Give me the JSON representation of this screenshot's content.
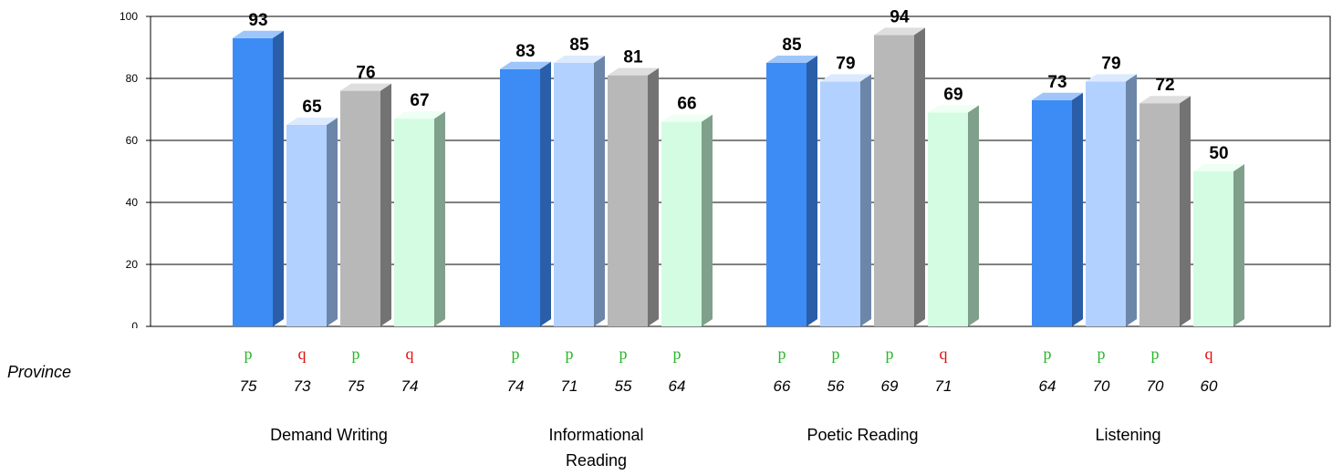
{
  "chart_data": {
    "type": "bar",
    "categories": [
      "Demand Writing",
      "Informational\nReading",
      "Poetic Reading",
      "Listening"
    ],
    "series": [
      {
        "values": [
          93,
          83,
          85,
          73
        ]
      },
      {
        "values": [
          65,
          85,
          79,
          79
        ]
      },
      {
        "values": [
          76,
          81,
          94,
          72
        ]
      },
      {
        "values": [
          67,
          66,
          69,
          50
        ]
      }
    ],
    "ylim": [
      0,
      100
    ],
    "yticks": [
      0,
      20,
      40,
      60,
      80,
      100
    ],
    "grid": true,
    "colors": [
      "#3d8cf5",
      "#b3d1ff",
      "#b8b8b8",
      "#d4fce2"
    ],
    "side_colors": [
      "#2a5ea8",
      "#6c86aa",
      "#737373",
      "#7fa08a"
    ],
    "top_colors": [
      "#9ec6fb",
      "#dceaff",
      "#dedede",
      "#eefff3"
    ]
  },
  "province": {
    "label": "Province",
    "values": [
      [
        75,
        73,
        75,
        74
      ],
      [
        74,
        71,
        55,
        64
      ],
      [
        66,
        56,
        69,
        71
      ],
      [
        64,
        70,
        70,
        60
      ]
    ],
    "arrows": [
      [
        "p",
        "q",
        "p",
        "q"
      ],
      [
        "p",
        "p",
        "p",
        "p"
      ],
      [
        "p",
        "p",
        "p",
        "q"
      ],
      [
        "p",
        "p",
        "p",
        "q"
      ]
    ],
    "arrow_colors": {
      "p": "#2ab52a",
      "q": "#e01010"
    }
  }
}
